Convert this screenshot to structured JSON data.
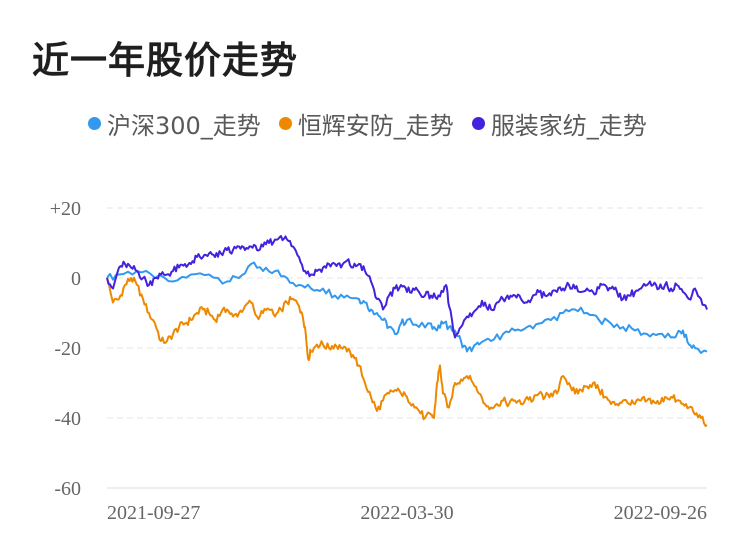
{
  "title": "近一年股价走势",
  "legend": [
    {
      "label": "沪深300_走势",
      "color": "#3399ee"
    },
    {
      "label": "恒辉安防_走势",
      "color": "#ee8800"
    },
    {
      "label": "服装家纺_走势",
      "color": "#4422dd"
    }
  ],
  "chart_data": {
    "type": "line",
    "title": "近一年股价走势",
    "xlabel": "",
    "ylabel": "",
    "ylim": [
      -60,
      20
    ],
    "yticks": [
      20,
      0,
      -20,
      -40,
      -60
    ],
    "ytick_labels": [
      "+20",
      "0",
      "-20",
      "-40",
      "-60"
    ],
    "xtick_labels": [
      "2021-09-27",
      "2022-03-30",
      "2022-09-26"
    ],
    "grid": true,
    "legend_position": "top",
    "series": [
      {
        "name": "沪深300_走势",
        "color": "#3399ee",
        "points": [
          [
            0,
            0
          ],
          [
            0.02,
            1
          ],
          [
            0.05,
            2
          ],
          [
            0.08,
            0
          ],
          [
            0.11,
            -1
          ],
          [
            0.14,
            1
          ],
          [
            0.17,
            1
          ],
          [
            0.2,
            -1
          ],
          [
            0.22,
            0
          ],
          [
            0.24,
            4
          ],
          [
            0.26,
            2
          ],
          [
            0.28,
            2
          ],
          [
            0.3,
            0
          ],
          [
            0.32,
            -2
          ],
          [
            0.34,
            -3
          ],
          [
            0.36,
            -3
          ],
          [
            0.38,
            -5
          ],
          [
            0.4,
            -5
          ],
          [
            0.42,
            -6
          ],
          [
            0.43,
            -7
          ],
          [
            0.44,
            -9
          ],
          [
            0.45,
            -10
          ],
          [
            0.46,
            -12
          ],
          [
            0.47,
            -14
          ],
          [
            0.48,
            -16
          ],
          [
            0.49,
            -13
          ],
          [
            0.5,
            -12
          ],
          [
            0.52,
            -14
          ],
          [
            0.54,
            -13
          ],
          [
            0.55,
            -15
          ],
          [
            0.56,
            -13
          ],
          [
            0.57,
            -14
          ],
          [
            0.58,
            -15
          ],
          [
            0.59,
            -18
          ],
          [
            0.6,
            -21
          ],
          [
            0.61,
            -20
          ],
          [
            0.62,
            -19
          ],
          [
            0.64,
            -18
          ],
          [
            0.66,
            -16
          ],
          [
            0.68,
            -15
          ],
          [
            0.7,
            -14
          ],
          [
            0.72,
            -13
          ],
          [
            0.74,
            -12
          ],
          [
            0.76,
            -10
          ],
          [
            0.78,
            -9
          ],
          [
            0.8,
            -10
          ],
          [
            0.82,
            -12
          ],
          [
            0.84,
            -13
          ],
          [
            0.86,
            -14
          ],
          [
            0.88,
            -15
          ],
          [
            0.9,
            -16
          ],
          [
            0.92,
            -16
          ],
          [
            0.94,
            -17
          ],
          [
            0.95,
            -16
          ],
          [
            0.96,
            -15
          ],
          [
            0.97,
            -19
          ],
          [
            0.98,
            -20
          ],
          [
            1.0,
            -21
          ]
        ]
      },
      {
        "name": "恒辉安防_走势",
        "color": "#ee8800",
        "points": [
          [
            0,
            0
          ],
          [
            0.01,
            -7
          ],
          [
            0.02,
            -6
          ],
          [
            0.03,
            -2
          ],
          [
            0.04,
            0
          ],
          [
            0.05,
            -2
          ],
          [
            0.06,
            -6
          ],
          [
            0.07,
            -10
          ],
          [
            0.08,
            -13
          ],
          [
            0.09,
            -18
          ],
          [
            0.1,
            -18
          ],
          [
            0.11,
            -16
          ],
          [
            0.12,
            -14
          ],
          [
            0.13,
            -13
          ],
          [
            0.14,
            -12
          ],
          [
            0.15,
            -10
          ],
          [
            0.16,
            -9
          ],
          [
            0.17,
            -10
          ],
          [
            0.18,
            -12
          ],
          [
            0.19,
            -10
          ],
          [
            0.2,
            -9
          ],
          [
            0.21,
            -11
          ],
          [
            0.22,
            -10
          ],
          [
            0.23,
            -8
          ],
          [
            0.24,
            -7
          ],
          [
            0.25,
            -11
          ],
          [
            0.26,
            -10
          ],
          [
            0.27,
            -9
          ],
          [
            0.28,
            -11
          ],
          [
            0.29,
            -9
          ],
          [
            0.3,
            -7
          ],
          [
            0.31,
            -6
          ],
          [
            0.32,
            -8
          ],
          [
            0.325,
            -10
          ],
          [
            0.33,
            -14
          ],
          [
            0.335,
            -23
          ],
          [
            0.34,
            -21
          ],
          [
            0.35,
            -19
          ],
          [
            0.36,
            -19
          ],
          [
            0.37,
            -20
          ],
          [
            0.38,
            -19
          ],
          [
            0.39,
            -20
          ],
          [
            0.4,
            -21
          ],
          [
            0.41,
            -22
          ],
          [
            0.42,
            -25
          ],
          [
            0.43,
            -30
          ],
          [
            0.44,
            -34
          ],
          [
            0.45,
            -38
          ],
          [
            0.46,
            -35
          ],
          [
            0.47,
            -33
          ],
          [
            0.48,
            -32
          ],
          [
            0.49,
            -33
          ],
          [
            0.5,
            -34
          ],
          [
            0.51,
            -36
          ],
          [
            0.52,
            -38
          ],
          [
            0.53,
            -40
          ],
          [
            0.54,
            -39
          ],
          [
            0.545,
            -40
          ],
          [
            0.55,
            -30
          ],
          [
            0.555,
            -25
          ],
          [
            0.56,
            -33
          ],
          [
            0.57,
            -37
          ],
          [
            0.58,
            -30
          ],
          [
            0.59,
            -29
          ],
          [
            0.6,
            -28
          ],
          [
            0.61,
            -30
          ],
          [
            0.62,
            -33
          ],
          [
            0.63,
            -36
          ],
          [
            0.64,
            -37
          ],
          [
            0.65,
            -36
          ],
          [
            0.66,
            -35
          ],
          [
            0.67,
            -36
          ],
          [
            0.68,
            -35
          ],
          [
            0.69,
            -36
          ],
          [
            0.7,
            -34
          ],
          [
            0.71,
            -35
          ],
          [
            0.72,
            -33
          ],
          [
            0.73,
            -34
          ],
          [
            0.74,
            -33
          ],
          [
            0.75,
            -33
          ],
          [
            0.76,
            -28
          ],
          [
            0.77,
            -30
          ],
          [
            0.78,
            -33
          ],
          [
            0.79,
            -32
          ],
          [
            0.8,
            -31
          ],
          [
            0.81,
            -30
          ],
          [
            0.82,
            -32
          ],
          [
            0.83,
            -34
          ],
          [
            0.84,
            -36
          ],
          [
            0.85,
            -36
          ],
          [
            0.86,
            -35
          ],
          [
            0.87,
            -36
          ],
          [
            0.88,
            -36
          ],
          [
            0.89,
            -35
          ],
          [
            0.9,
            -35
          ],
          [
            0.91,
            -35
          ],
          [
            0.92,
            -36
          ],
          [
            0.93,
            -34
          ],
          [
            0.94,
            -34
          ],
          [
            0.95,
            -35
          ],
          [
            0.96,
            -36
          ],
          [
            0.97,
            -37
          ],
          [
            0.98,
            -39
          ],
          [
            0.99,
            -40
          ],
          [
            1.0,
            -42
          ]
        ]
      },
      {
        "name": "服装家纺_走势",
        "color": "#4422dd",
        "points": [
          [
            0,
            0
          ],
          [
            0.01,
            -3
          ],
          [
            0.02,
            3
          ],
          [
            0.03,
            4
          ],
          [
            0.04,
            3
          ],
          [
            0.05,
            2
          ],
          [
            0.06,
            0
          ],
          [
            0.07,
            -2
          ],
          [
            0.08,
            0
          ],
          [
            0.09,
            1
          ],
          [
            0.1,
            1
          ],
          [
            0.11,
            2
          ],
          [
            0.12,
            3
          ],
          [
            0.13,
            4
          ],
          [
            0.14,
            4
          ],
          [
            0.15,
            6
          ],
          [
            0.16,
            6
          ],
          [
            0.17,
            7
          ],
          [
            0.18,
            6
          ],
          [
            0.19,
            7
          ],
          [
            0.2,
            8
          ],
          [
            0.21,
            8
          ],
          [
            0.22,
            9
          ],
          [
            0.23,
            8
          ],
          [
            0.24,
            9
          ],
          [
            0.25,
            8
          ],
          [
            0.26,
            9
          ],
          [
            0.27,
            10
          ],
          [
            0.28,
            11
          ],
          [
            0.29,
            12
          ],
          [
            0.3,
            11
          ],
          [
            0.31,
            9
          ],
          [
            0.32,
            6
          ],
          [
            0.33,
            2
          ],
          [
            0.34,
            1
          ],
          [
            0.35,
            2
          ],
          [
            0.36,
            3
          ],
          [
            0.37,
            4
          ],
          [
            0.38,
            4
          ],
          [
            0.39,
            3
          ],
          [
            0.4,
            5
          ],
          [
            0.41,
            3
          ],
          [
            0.42,
            4
          ],
          [
            0.43,
            2
          ],
          [
            0.44,
            -1
          ],
          [
            0.45,
            -6
          ],
          [
            0.46,
            -9
          ],
          [
            0.47,
            -5
          ],
          [
            0.48,
            -3
          ],
          [
            0.49,
            -2
          ],
          [
            0.5,
            -4
          ],
          [
            0.51,
            -3
          ],
          [
            0.52,
            -4
          ],
          [
            0.53,
            -5
          ],
          [
            0.54,
            -5
          ],
          [
            0.55,
            -6
          ],
          [
            0.56,
            -4
          ],
          [
            0.565,
            -2
          ],
          [
            0.57,
            -8
          ],
          [
            0.58,
            -17
          ],
          [
            0.59,
            -14
          ],
          [
            0.6,
            -11
          ],
          [
            0.61,
            -10
          ],
          [
            0.62,
            -8
          ],
          [
            0.63,
            -7
          ],
          [
            0.64,
            -9
          ],
          [
            0.65,
            -7
          ],
          [
            0.66,
            -6
          ],
          [
            0.67,
            -6
          ],
          [
            0.68,
            -5
          ],
          [
            0.69,
            -6
          ],
          [
            0.7,
            -7
          ],
          [
            0.71,
            -5
          ],
          [
            0.72,
            -4
          ],
          [
            0.73,
            -5
          ],
          [
            0.74,
            -5
          ],
          [
            0.75,
            -4
          ],
          [
            0.76,
            -3
          ],
          [
            0.77,
            -2
          ],
          [
            0.78,
            -3
          ],
          [
            0.79,
            -4
          ],
          [
            0.8,
            -3
          ],
          [
            0.81,
            -4
          ],
          [
            0.82,
            -3
          ],
          [
            0.83,
            -2
          ],
          [
            0.84,
            -3
          ],
          [
            0.85,
            -4
          ],
          [
            0.86,
            -6
          ],
          [
            0.87,
            -5
          ],
          [
            0.88,
            -4
          ],
          [
            0.89,
            -3
          ],
          [
            0.9,
            -2
          ],
          [
            0.91,
            -2
          ],
          [
            0.92,
            -3
          ],
          [
            0.93,
            -2
          ],
          [
            0.94,
            -3
          ],
          [
            0.95,
            -2
          ],
          [
            0.96,
            -4
          ],
          [
            0.97,
            -6
          ],
          [
            0.98,
            -3
          ],
          [
            0.99,
            -6
          ],
          [
            1.0,
            -9
          ]
        ]
      }
    ]
  }
}
